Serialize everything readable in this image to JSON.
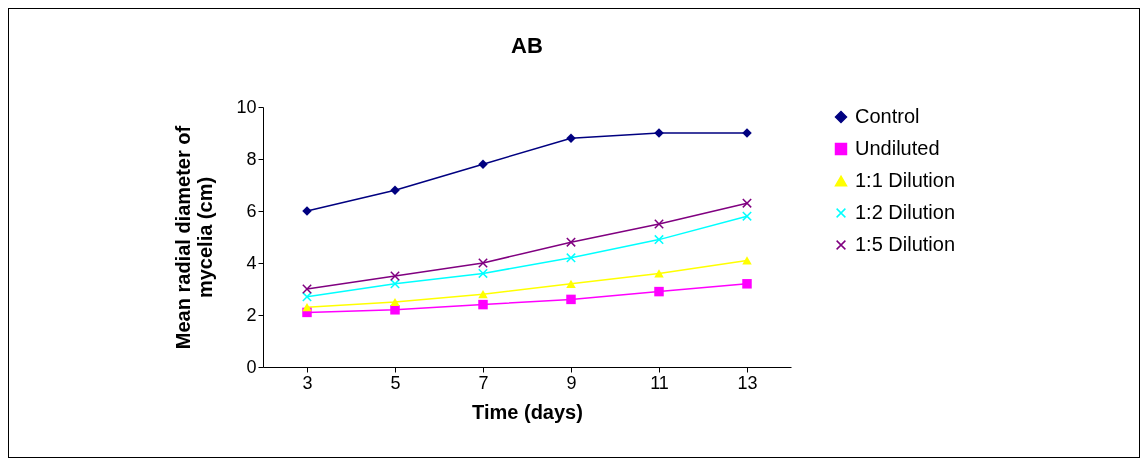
{
  "chart_data": {
    "type": "line",
    "title": "AB",
    "xlabel": "Time (days)",
    "ylabel": "Mean radial diameter of\nmycelia (cm)",
    "categories": [
      "3",
      "5",
      "7",
      "9",
      "11",
      "13"
    ],
    "ylim": [
      0,
      10
    ],
    "yticks": [
      0,
      2,
      4,
      6,
      8,
      10
    ],
    "grid": false,
    "legend": "right",
    "series": [
      {
        "name": "Control",
        "color": "#000080",
        "marker": "diamond",
        "values": [
          6.0,
          6.8,
          7.8,
          8.8,
          9.0,
          9.0
        ]
      },
      {
        "name": "Undiluted",
        "color": "#ff00ff",
        "marker": "square",
        "values": [
          2.1,
          2.2,
          2.4,
          2.6,
          2.9,
          3.2
        ]
      },
      {
        "name": "1:1 Dilution",
        "color": "#ffff00",
        "marker": "triangle",
        "values": [
          2.3,
          2.5,
          2.8,
          3.2,
          3.6,
          4.1
        ]
      },
      {
        "name": "1:2 Dilution",
        "color": "#00ffff",
        "marker": "cross",
        "values": [
          2.7,
          3.2,
          3.6,
          4.2,
          4.9,
          5.8
        ]
      },
      {
        "name": "1:5 Dilution",
        "color": "#800080",
        "marker": "cross",
        "values": [
          3.0,
          3.5,
          4.0,
          4.8,
          5.5,
          6.3
        ]
      }
    ]
  }
}
